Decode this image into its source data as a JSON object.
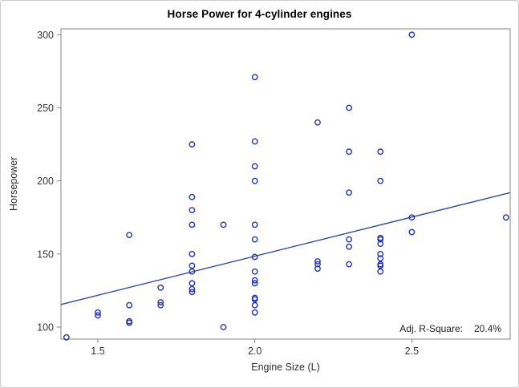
{
  "figure": {
    "annotation_label": "Adj. R-Square:",
    "annotation_value": "20.4%"
  },
  "colors": {
    "marker": "#2533ad",
    "fit_line": "#2c4ba0",
    "frame": "#868686",
    "tick": "#868686",
    "tick_label": "#333333",
    "background": "#ffffff",
    "border": "#cccccc"
  },
  "chart_data": {
    "type": "scatter",
    "title": "Horse Power for 4-cylinder engines",
    "xlabel": "Engine Size (L)",
    "ylabel": "Horsepower",
    "xlim": [
      1.3825,
      2.8133
    ],
    "ylim": [
      91.8,
      304
    ],
    "xticks": [
      1.5,
      2.0,
      2.5
    ],
    "yticks": [
      100,
      150,
      200,
      250,
      300
    ],
    "grid": false,
    "legend": "none",
    "annotation": "Adj. R-Square:  20.4%",
    "fit_line": {
      "x1": 1.3825,
      "y1": 115.5,
      "x2": 2.8133,
      "y2": 192
    },
    "points": [
      [
        1.4,
        93
      ],
      [
        1.5,
        108
      ],
      [
        1.5,
        110
      ],
      [
        1.6,
        103
      ],
      [
        1.6,
        104
      ],
      [
        1.6,
        115
      ],
      [
        1.6,
        163
      ],
      [
        1.7,
        115
      ],
      [
        1.7,
        117
      ],
      [
        1.7,
        127
      ],
      [
        1.8,
        124
      ],
      [
        1.8,
        126
      ],
      [
        1.8,
        130
      ],
      [
        1.8,
        138
      ],
      [
        1.8,
        142
      ],
      [
        1.8,
        150
      ],
      [
        1.8,
        170
      ],
      [
        1.8,
        180
      ],
      [
        1.8,
        189
      ],
      [
        1.8,
        225
      ],
      [
        1.9,
        100
      ],
      [
        1.9,
        170
      ],
      [
        2.0,
        110
      ],
      [
        2.0,
        115
      ],
      [
        2.0,
        119
      ],
      [
        2.0,
        120
      ],
      [
        2.0,
        130
      ],
      [
        2.0,
        132
      ],
      [
        2.0,
        138
      ],
      [
        2.0,
        148
      ],
      [
        2.0,
        160
      ],
      [
        2.0,
        170
      ],
      [
        2.0,
        200
      ],
      [
        2.0,
        210
      ],
      [
        2.0,
        227
      ],
      [
        2.0,
        271
      ],
      [
        2.2,
        140
      ],
      [
        2.2,
        143
      ],
      [
        2.2,
        145
      ],
      [
        2.2,
        240
      ],
      [
        2.3,
        143
      ],
      [
        2.3,
        155
      ],
      [
        2.3,
        160
      ],
      [
        2.3,
        192
      ],
      [
        2.3,
        220
      ],
      [
        2.3,
        250
      ],
      [
        2.4,
        138
      ],
      [
        2.4,
        142
      ],
      [
        2.4,
        143
      ],
      [
        2.4,
        147
      ],
      [
        2.4,
        150
      ],
      [
        2.4,
        157
      ],
      [
        2.4,
        160
      ],
      [
        2.4,
        161
      ],
      [
        2.4,
        200
      ],
      [
        2.4,
        220
      ],
      [
        2.5,
        165
      ],
      [
        2.5,
        175
      ],
      [
        2.5,
        300
      ],
      [
        2.8,
        175
      ]
    ]
  }
}
